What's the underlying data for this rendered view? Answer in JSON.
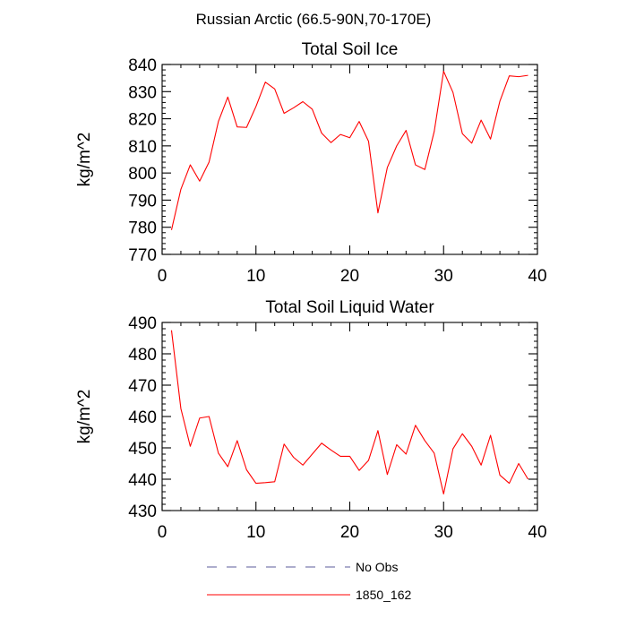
{
  "figure": {
    "title": "Russian Arctic (66.5-90N,70-170E)"
  },
  "chart_data": [
    {
      "type": "line",
      "title": "Total Soil Ice",
      "xlabel": "",
      "ylabel": "kg/m^2",
      "xlim": [
        0,
        40
      ],
      "ylim": [
        770,
        840
      ],
      "xticks": [
        0,
        10,
        20,
        30,
        40
      ],
      "yticks": [
        770,
        780,
        790,
        800,
        810,
        820,
        830,
        840
      ],
      "x_minor_step": 2,
      "y_minor_step": 2,
      "grid": false,
      "series": [
        {
          "name": "1850_162",
          "color": "#ff0000",
          "x": [
            1,
            2,
            3,
            4,
            5,
            6,
            7,
            8,
            9,
            10,
            11,
            12,
            13,
            14,
            15,
            16,
            17,
            18,
            19,
            20,
            21,
            22,
            23,
            24,
            25,
            26,
            27,
            28,
            29,
            30,
            31,
            32,
            33,
            34,
            35,
            36,
            37,
            38,
            39
          ],
          "y": [
            779,
            794,
            803,
            797,
            804,
            819,
            828,
            817,
            816.8,
            824.5,
            833.5,
            831,
            822,
            824,
            826.3,
            823.5,
            814.7,
            811.2,
            814.2,
            813,
            819,
            811.7,
            785.3,
            802,
            810,
            815.7,
            803,
            801.3,
            815.3,
            837.5,
            829.7,
            814.5,
            811,
            819.5,
            812.5,
            826.5,
            835.8,
            835.5,
            836
          ]
        }
      ]
    },
    {
      "type": "line",
      "title": "Total Soil Liquid Water",
      "xlabel": "",
      "ylabel": "kg/m^2",
      "xlim": [
        0,
        40
      ],
      "ylim": [
        430,
        490
      ],
      "xticks": [
        0,
        10,
        20,
        30,
        40
      ],
      "yticks": [
        430,
        440,
        450,
        460,
        470,
        480,
        490
      ],
      "x_minor_step": 2,
      "y_minor_step": 2,
      "grid": false,
      "series": [
        {
          "name": "1850_162",
          "color": "#ff0000",
          "x": [
            1,
            2,
            3,
            4,
            5,
            6,
            7,
            8,
            9,
            10,
            11,
            12,
            13,
            14,
            15,
            16,
            17,
            18,
            19,
            20,
            21,
            22,
            23,
            24,
            25,
            26,
            27,
            28,
            29,
            30,
            31,
            32,
            33,
            34,
            35,
            36,
            37,
            38,
            39
          ],
          "y": [
            487.5,
            462.5,
            450.5,
            459.5,
            460,
            448.3,
            444,
            452.3,
            443,
            438.7,
            438.9,
            439.2,
            451.2,
            447,
            444.5,
            448,
            451.5,
            449.3,
            447.3,
            447.3,
            442.8,
            446,
            455.5,
            441.5,
            451,
            448,
            457.2,
            452.3,
            448.3,
            435.3,
            449.7,
            454.5,
            450.5,
            444.5,
            454,
            441.3,
            438.7,
            445,
            440
          ]
        }
      ]
    }
  ],
  "legend": {
    "placement": "bottom-center",
    "items": [
      {
        "label": "No Obs",
        "color": "#5b5b9b",
        "style": "dashed"
      },
      {
        "label": "1850_162",
        "color": "#ff0000",
        "style": "solid"
      }
    ]
  }
}
